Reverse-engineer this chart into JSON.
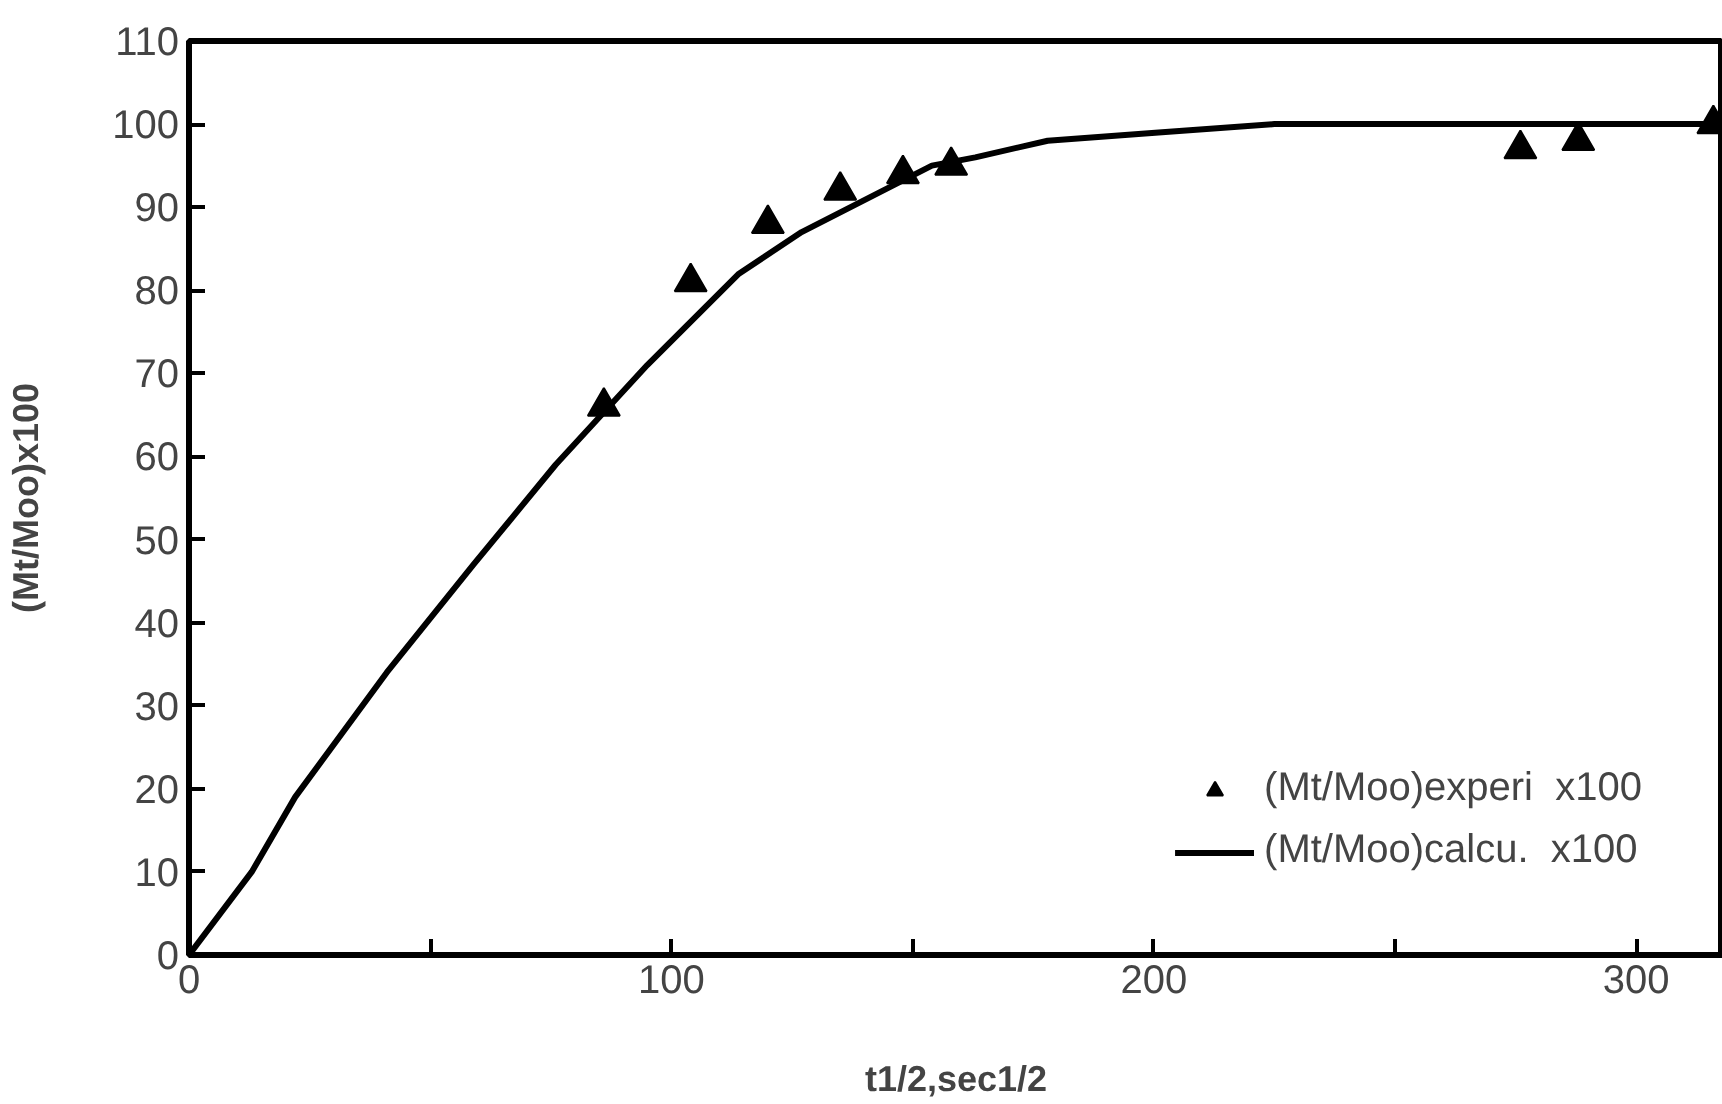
{
  "chart_data": {
    "type": "scatter",
    "xlabel": "t1/2,sec1/2",
    "ylabel": "(Mt/Moo)x100",
    "xlim": [
      0,
      318
    ],
    "ylim": [
      0,
      110
    ],
    "xticks": [
      0,
      {
        "value": 50,
        "label": null
      },
      100,
      {
        "value": 150,
        "label": null
      },
      200,
      {
        "value": 250,
        "label": null
      },
      300
    ],
    "yticks": [
      0,
      10,
      20,
      30,
      40,
      50,
      60,
      70,
      80,
      90,
      100,
      110
    ],
    "grid": false,
    "legend": "bottom right",
    "series": [
      {
        "name": "(Mt/Moo)experi  x100",
        "marker": "triangle",
        "color": "#000000",
        "x": [
          86,
          104,
          120,
          135,
          148,
          158,
          276,
          288,
          316
        ],
        "values": [
          66,
          81,
          88,
          92,
          94,
          95,
          97,
          98,
          100
        ]
      },
      {
        "name": "(Mt/Moo)calcu.  x100",
        "type": "line",
        "marker": "none",
        "line_style": "solid",
        "color": "#000000",
        "x": [
          0,
          13,
          22,
          41,
          59,
          76,
          95,
          114,
          127,
          154,
          163,
          178,
          201,
          225,
          318
        ],
        "values": [
          0,
          10,
          19,
          34,
          47,
          59,
          71,
          82,
          87,
          95,
          96,
          98,
          99,
          100,
          100
        ]
      }
    ]
  }
}
